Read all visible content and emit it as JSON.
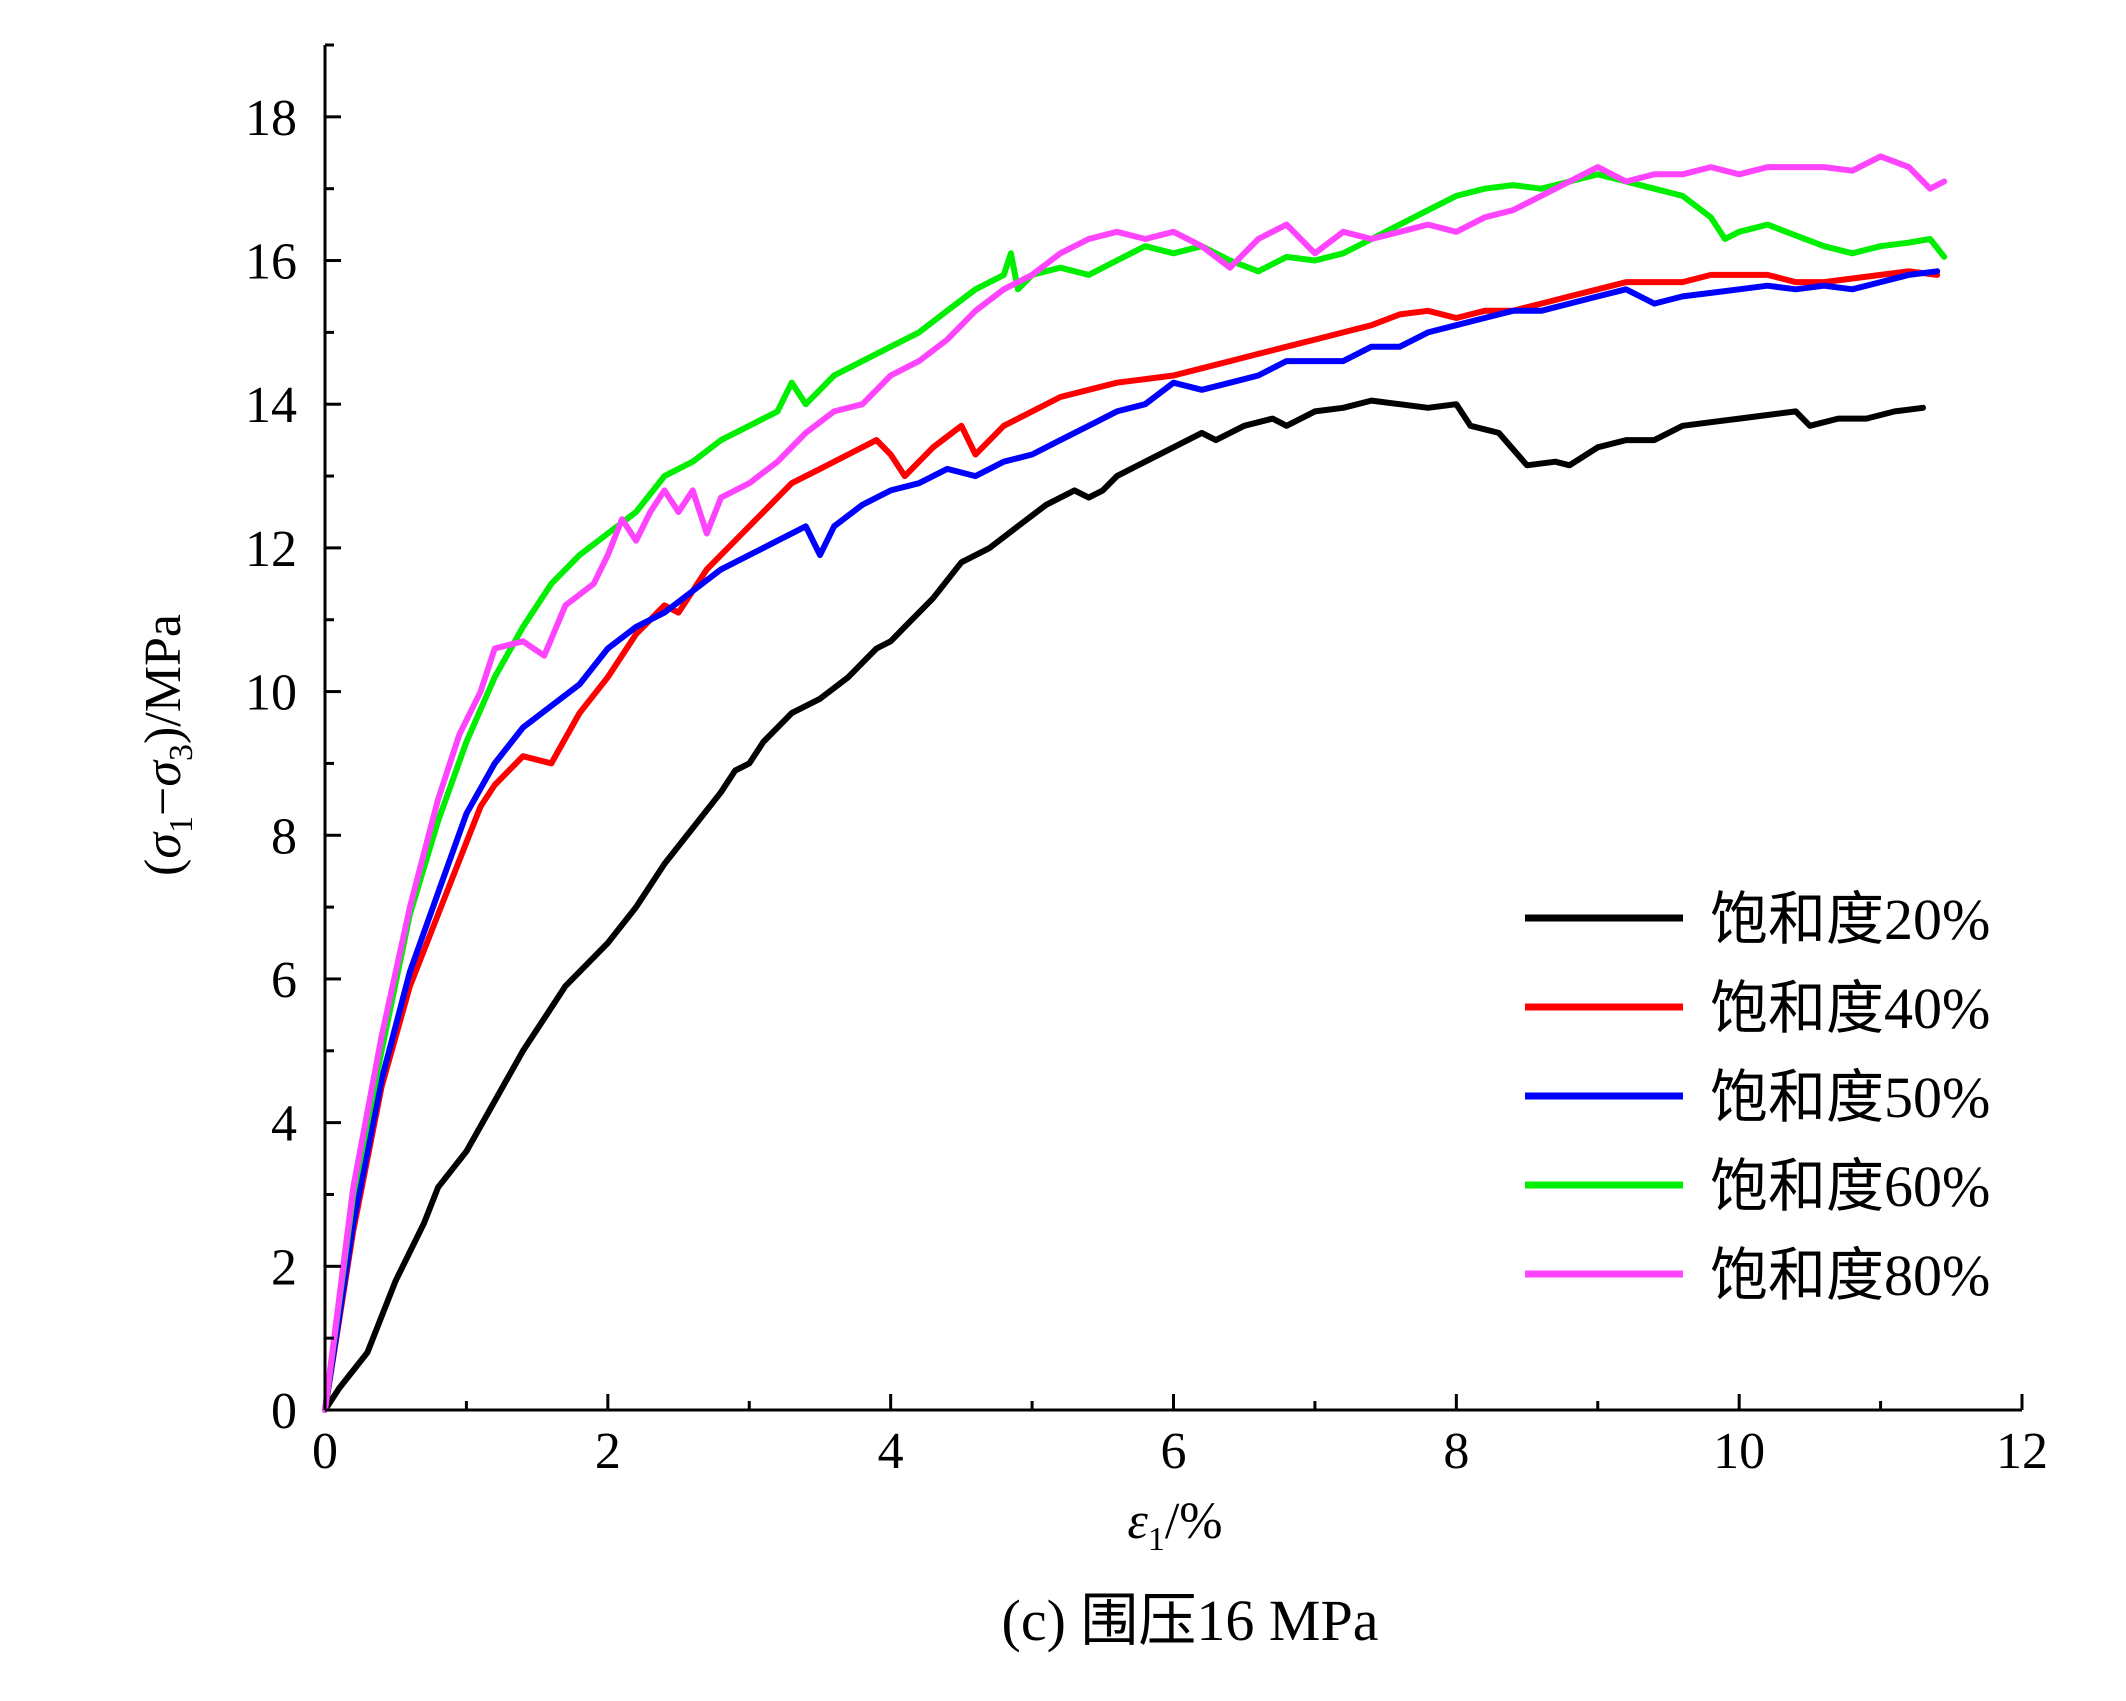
{
  "caption": "(c) 围压16 MPa",
  "chart_data": {
    "type": "line",
    "xlabel": {
      "symbol": "ε",
      "subscript": "1",
      "rest": "/%"
    },
    "ylabel": {
      "open": "(",
      "s1": "σ",
      "sub1": "1",
      "minus": "−",
      "s3": "σ",
      "sub3": "3",
      "rest": ")/MPa"
    },
    "xlim": [
      0,
      12
    ],
    "ylim": [
      0,
      19
    ],
    "x_ticks": [
      0,
      2,
      4,
      6,
      8,
      10,
      12
    ],
    "y_ticks": [
      0,
      2,
      4,
      6,
      8,
      10,
      12,
      14,
      16,
      18
    ],
    "x_tick_labels": [
      "0",
      "2",
      "4",
      "6",
      "8",
      "10",
      "12"
    ],
    "y_tick_labels": [
      "0",
      "2",
      "4",
      "6",
      "8",
      "10",
      "12",
      "14",
      "16",
      "18"
    ],
    "legend_position": "bottom-right",
    "grid": false,
    "series": [
      {
        "name": "饱和度20%",
        "color": "#000000",
        "points": [
          [
            0,
            0
          ],
          [
            0.1,
            0.3
          ],
          [
            0.3,
            0.8
          ],
          [
            0.5,
            1.8
          ],
          [
            0.7,
            2.6
          ],
          [
            0.8,
            3.1
          ],
          [
            1.0,
            3.6
          ],
          [
            1.2,
            4.3
          ],
          [
            1.4,
            5.0
          ],
          [
            1.6,
            5.6
          ],
          [
            1.7,
            5.9
          ],
          [
            1.9,
            6.3
          ],
          [
            2.0,
            6.5
          ],
          [
            2.2,
            7.0
          ],
          [
            2.4,
            7.6
          ],
          [
            2.6,
            8.1
          ],
          [
            2.8,
            8.6
          ],
          [
            2.9,
            8.9
          ],
          [
            3.0,
            9.0
          ],
          [
            3.1,
            9.3
          ],
          [
            3.3,
            9.7
          ],
          [
            3.5,
            9.9
          ],
          [
            3.7,
            10.2
          ],
          [
            3.9,
            10.6
          ],
          [
            4.0,
            10.7
          ],
          [
            4.1,
            10.9
          ],
          [
            4.3,
            11.3
          ],
          [
            4.5,
            11.8
          ],
          [
            4.7,
            12.0
          ],
          [
            4.9,
            12.3
          ],
          [
            5.1,
            12.6
          ],
          [
            5.3,
            12.8
          ],
          [
            5.4,
            12.7
          ],
          [
            5.5,
            12.8
          ],
          [
            5.6,
            13.0
          ],
          [
            5.8,
            13.2
          ],
          [
            6.0,
            13.4
          ],
          [
            6.2,
            13.6
          ],
          [
            6.3,
            13.5
          ],
          [
            6.5,
            13.7
          ],
          [
            6.7,
            13.8
          ],
          [
            6.8,
            13.7
          ],
          [
            7.0,
            13.9
          ],
          [
            7.2,
            13.95
          ],
          [
            7.4,
            14.05
          ],
          [
            7.6,
            14.0
          ],
          [
            7.8,
            13.95
          ],
          [
            8.0,
            14.0
          ],
          [
            8.1,
            13.7
          ],
          [
            8.3,
            13.6
          ],
          [
            8.5,
            13.15
          ],
          [
            8.7,
            13.2
          ],
          [
            8.8,
            13.15
          ],
          [
            9.0,
            13.4
          ],
          [
            9.2,
            13.5
          ],
          [
            9.4,
            13.5
          ],
          [
            9.6,
            13.7
          ],
          [
            9.8,
            13.75
          ],
          [
            10.0,
            13.8
          ],
          [
            10.2,
            13.85
          ],
          [
            10.4,
            13.9
          ],
          [
            10.5,
            13.7
          ],
          [
            10.7,
            13.8
          ],
          [
            10.9,
            13.8
          ],
          [
            11.1,
            13.9
          ],
          [
            11.3,
            13.95
          ]
        ]
      },
      {
        "name": "饱和度40%",
        "color": "#ff0000",
        "points": [
          [
            0,
            0
          ],
          [
            0.2,
            2.5
          ],
          [
            0.4,
            4.5
          ],
          [
            0.6,
            5.9
          ],
          [
            0.8,
            6.9
          ],
          [
            1.0,
            7.9
          ],
          [
            1.1,
            8.4
          ],
          [
            1.2,
            8.7
          ],
          [
            1.4,
            9.1
          ],
          [
            1.6,
            9.0
          ],
          [
            1.8,
            9.7
          ],
          [
            2.0,
            10.2
          ],
          [
            2.2,
            10.8
          ],
          [
            2.4,
            11.2
          ],
          [
            2.5,
            11.1
          ],
          [
            2.7,
            11.7
          ],
          [
            2.9,
            12.1
          ],
          [
            3.1,
            12.5
          ],
          [
            3.3,
            12.9
          ],
          [
            3.5,
            13.1
          ],
          [
            3.7,
            13.3
          ],
          [
            3.9,
            13.5
          ],
          [
            4.0,
            13.3
          ],
          [
            4.1,
            13.0
          ],
          [
            4.3,
            13.4
          ],
          [
            4.5,
            13.7
          ],
          [
            4.6,
            13.3
          ],
          [
            4.8,
            13.7
          ],
          [
            5.0,
            13.9
          ],
          [
            5.2,
            14.1
          ],
          [
            5.4,
            14.2
          ],
          [
            5.6,
            14.3
          ],
          [
            5.8,
            14.35
          ],
          [
            6.0,
            14.4
          ],
          [
            6.2,
            14.5
          ],
          [
            6.4,
            14.6
          ],
          [
            6.6,
            14.7
          ],
          [
            6.8,
            14.8
          ],
          [
            7.0,
            14.9
          ],
          [
            7.2,
            15.0
          ],
          [
            7.4,
            15.1
          ],
          [
            7.6,
            15.25
          ],
          [
            7.8,
            15.3
          ],
          [
            8.0,
            15.2
          ],
          [
            8.2,
            15.3
          ],
          [
            8.4,
            15.3
          ],
          [
            8.6,
            15.4
          ],
          [
            8.8,
            15.5
          ],
          [
            9.0,
            15.6
          ],
          [
            9.2,
            15.7
          ],
          [
            9.4,
            15.7
          ],
          [
            9.6,
            15.7
          ],
          [
            9.8,
            15.8
          ],
          [
            10.0,
            15.8
          ],
          [
            10.2,
            15.8
          ],
          [
            10.4,
            15.7
          ],
          [
            10.6,
            15.7
          ],
          [
            10.8,
            15.75
          ],
          [
            11.0,
            15.8
          ],
          [
            11.2,
            15.85
          ],
          [
            11.4,
            15.8
          ]
        ]
      },
      {
        "name": "饱和度50%",
        "color": "#0000ff",
        "points": [
          [
            0,
            0
          ],
          [
            0.2,
            2.6
          ],
          [
            0.4,
            4.6
          ],
          [
            0.6,
            6.1
          ],
          [
            0.8,
            7.2
          ],
          [
            1.0,
            8.3
          ],
          [
            1.2,
            9.0
          ],
          [
            1.4,
            9.5
          ],
          [
            1.6,
            9.8
          ],
          [
            1.8,
            10.1
          ],
          [
            2.0,
            10.6
          ],
          [
            2.2,
            10.9
          ],
          [
            2.4,
            11.1
          ],
          [
            2.6,
            11.4
          ],
          [
            2.8,
            11.7
          ],
          [
            3.0,
            11.9
          ],
          [
            3.2,
            12.1
          ],
          [
            3.4,
            12.3
          ],
          [
            3.5,
            11.9
          ],
          [
            3.6,
            12.3
          ],
          [
            3.8,
            12.6
          ],
          [
            4.0,
            12.8
          ],
          [
            4.2,
            12.9
          ],
          [
            4.4,
            13.1
          ],
          [
            4.6,
            13.0
          ],
          [
            4.8,
            13.2
          ],
          [
            5.0,
            13.3
          ],
          [
            5.2,
            13.5
          ],
          [
            5.4,
            13.7
          ],
          [
            5.6,
            13.9
          ],
          [
            5.8,
            14.0
          ],
          [
            6.0,
            14.3
          ],
          [
            6.2,
            14.2
          ],
          [
            6.4,
            14.3
          ],
          [
            6.6,
            14.4
          ],
          [
            6.8,
            14.6
          ],
          [
            7.0,
            14.6
          ],
          [
            7.2,
            14.6
          ],
          [
            7.4,
            14.8
          ],
          [
            7.6,
            14.8
          ],
          [
            7.8,
            15.0
          ],
          [
            8.0,
            15.1
          ],
          [
            8.2,
            15.2
          ],
          [
            8.4,
            15.3
          ],
          [
            8.6,
            15.3
          ],
          [
            8.8,
            15.4
          ],
          [
            9.0,
            15.5
          ],
          [
            9.2,
            15.6
          ],
          [
            9.4,
            15.4
          ],
          [
            9.6,
            15.5
          ],
          [
            9.8,
            15.55
          ],
          [
            10.0,
            15.6
          ],
          [
            10.2,
            15.65
          ],
          [
            10.4,
            15.6
          ],
          [
            10.6,
            15.65
          ],
          [
            10.8,
            15.6
          ],
          [
            11.0,
            15.7
          ],
          [
            11.2,
            15.8
          ],
          [
            11.4,
            15.85
          ]
        ]
      },
      {
        "name": "饱和度60%",
        "color": "#00ee00",
        "points": [
          [
            0,
            0
          ],
          [
            0.2,
            3.0
          ],
          [
            0.4,
            5.0
          ],
          [
            0.6,
            6.9
          ],
          [
            0.8,
            8.2
          ],
          [
            1.0,
            9.3
          ],
          [
            1.2,
            10.2
          ],
          [
            1.4,
            10.9
          ],
          [
            1.6,
            11.5
          ],
          [
            1.8,
            11.9
          ],
          [
            2.0,
            12.2
          ],
          [
            2.2,
            12.5
          ],
          [
            2.4,
            13.0
          ],
          [
            2.6,
            13.2
          ],
          [
            2.8,
            13.5
          ],
          [
            3.0,
            13.7
          ],
          [
            3.2,
            13.9
          ],
          [
            3.3,
            14.3
          ],
          [
            3.4,
            14.0
          ],
          [
            3.6,
            14.4
          ],
          [
            3.8,
            14.6
          ],
          [
            4.0,
            14.8
          ],
          [
            4.2,
            15.0
          ],
          [
            4.4,
            15.3
          ],
          [
            4.6,
            15.6
          ],
          [
            4.8,
            15.8
          ],
          [
            4.85,
            16.1
          ],
          [
            4.9,
            15.6
          ],
          [
            5.0,
            15.8
          ],
          [
            5.2,
            15.9
          ],
          [
            5.4,
            15.8
          ],
          [
            5.6,
            16.0
          ],
          [
            5.8,
            16.2
          ],
          [
            6.0,
            16.1
          ],
          [
            6.2,
            16.2
          ],
          [
            6.4,
            16.0
          ],
          [
            6.6,
            15.85
          ],
          [
            6.8,
            16.05
          ],
          [
            7.0,
            16.0
          ],
          [
            7.2,
            16.1
          ],
          [
            7.4,
            16.3
          ],
          [
            7.6,
            16.5
          ],
          [
            7.8,
            16.7
          ],
          [
            8.0,
            16.9
          ],
          [
            8.2,
            17.0
          ],
          [
            8.4,
            17.05
          ],
          [
            8.6,
            17.0
          ],
          [
            8.8,
            17.1
          ],
          [
            9.0,
            17.2
          ],
          [
            9.2,
            17.1
          ],
          [
            9.4,
            17.0
          ],
          [
            9.6,
            16.9
          ],
          [
            9.8,
            16.6
          ],
          [
            9.9,
            16.3
          ],
          [
            10.0,
            16.4
          ],
          [
            10.2,
            16.5
          ],
          [
            10.4,
            16.35
          ],
          [
            10.6,
            16.2
          ],
          [
            10.8,
            16.1
          ],
          [
            11.0,
            16.2
          ],
          [
            11.2,
            16.25
          ],
          [
            11.35,
            16.3
          ],
          [
            11.45,
            16.05
          ]
        ]
      },
      {
        "name": "饱和度80%",
        "color": "#ff44ff",
        "points": [
          [
            0,
            0
          ],
          [
            0.2,
            3.1
          ],
          [
            0.4,
            5.2
          ],
          [
            0.6,
            7.0
          ],
          [
            0.8,
            8.5
          ],
          [
            0.95,
            9.4
          ],
          [
            1.1,
            10.0
          ],
          [
            1.2,
            10.6
          ],
          [
            1.4,
            10.7
          ],
          [
            1.55,
            10.5
          ],
          [
            1.7,
            11.2
          ],
          [
            1.9,
            11.5
          ],
          [
            2.0,
            11.9
          ],
          [
            2.1,
            12.4
          ],
          [
            2.2,
            12.1
          ],
          [
            2.3,
            12.5
          ],
          [
            2.4,
            12.8
          ],
          [
            2.5,
            12.5
          ],
          [
            2.6,
            12.8
          ],
          [
            2.7,
            12.2
          ],
          [
            2.8,
            12.7
          ],
          [
            3.0,
            12.9
          ],
          [
            3.2,
            13.2
          ],
          [
            3.4,
            13.6
          ],
          [
            3.6,
            13.9
          ],
          [
            3.8,
            14.0
          ],
          [
            4.0,
            14.4
          ],
          [
            4.2,
            14.6
          ],
          [
            4.4,
            14.9
          ],
          [
            4.6,
            15.3
          ],
          [
            4.8,
            15.6
          ],
          [
            5.0,
            15.8
          ],
          [
            5.2,
            16.1
          ],
          [
            5.4,
            16.3
          ],
          [
            5.6,
            16.4
          ],
          [
            5.8,
            16.3
          ],
          [
            6.0,
            16.4
          ],
          [
            6.2,
            16.2
          ],
          [
            6.4,
            15.9
          ],
          [
            6.6,
            16.3
          ],
          [
            6.8,
            16.5
          ],
          [
            7.0,
            16.1
          ],
          [
            7.2,
            16.4
          ],
          [
            7.4,
            16.3
          ],
          [
            7.6,
            16.4
          ],
          [
            7.8,
            16.5
          ],
          [
            8.0,
            16.4
          ],
          [
            8.2,
            16.6
          ],
          [
            8.4,
            16.7
          ],
          [
            8.6,
            16.9
          ],
          [
            8.8,
            17.1
          ],
          [
            9.0,
            17.3
          ],
          [
            9.2,
            17.1
          ],
          [
            9.4,
            17.2
          ],
          [
            9.6,
            17.2
          ],
          [
            9.8,
            17.3
          ],
          [
            10.0,
            17.2
          ],
          [
            10.2,
            17.3
          ],
          [
            10.4,
            17.3
          ],
          [
            10.6,
            17.3
          ],
          [
            10.8,
            17.25
          ],
          [
            11.0,
            17.45
          ],
          [
            11.2,
            17.3
          ],
          [
            11.35,
            17.0
          ],
          [
            11.45,
            17.1
          ]
        ]
      }
    ]
  }
}
